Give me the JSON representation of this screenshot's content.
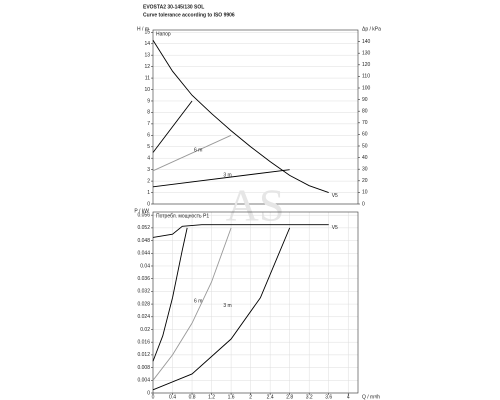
{
  "chart_data": [
    {
      "type": "line",
      "title": "EVOSTA2 30-145/130 SOL",
      "subtitle": "Curve tolerance according to ISO 9906",
      "panel_label": "Напор",
      "ylabel": "H / m",
      "y2label": "Δp / kPa",
      "watermark": "AS",
      "xlim": [
        0,
        4.2
      ],
      "ylim": [
        0,
        15.2
      ],
      "yticks": [
        0,
        1,
        2,
        3,
        4,
        5,
        6,
        7,
        8,
        9,
        10,
        11,
        12,
        13,
        14,
        15
      ],
      "y2lim": [
        0,
        150
      ],
      "y2ticks": [
        0,
        10,
        20,
        30,
        40,
        50,
        60,
        70,
        80,
        90,
        100,
        110,
        120,
        130,
        140
      ],
      "grid": true,
      "series": [
        {
          "name": "V5",
          "color": "#000000",
          "x": [
            0,
            0.4,
            0.8,
            1.2,
            1.6,
            2,
            2.4,
            2.8,
            3.2,
            3.6
          ],
          "values": [
            14.3,
            11.6,
            9.5,
            7.9,
            6.4,
            5,
            3.7,
            2.5,
            1.6,
            1
          ]
        },
        {
          "color": "#000000",
          "x": [
            0,
            0.8
          ],
          "values": [
            4.5,
            9
          ]
        },
        {
          "name": "6 m",
          "color": "#999999",
          "x": [
            0,
            1.6
          ],
          "values": [
            2.9,
            6
          ]
        },
        {
          "name": "3 m",
          "color": "#000000",
          "x": [
            0,
            2.8
          ],
          "values": [
            1.5,
            3
          ]
        }
      ]
    },
    {
      "type": "line",
      "panel_label": "Потребл. мощность P1",
      "ylabel": "P / kW",
      "xlabel": "Q / m³/h",
      "xlim": [
        0,
        4.2
      ],
      "xticks": [
        0,
        0.4,
        0.8,
        1.2,
        1.6,
        2,
        2.4,
        2.8,
        3.2,
        3.6,
        4
      ],
      "ylim": [
        0,
        0.057
      ],
      "yticks": [
        0,
        0.004,
        0.008,
        0.012,
        0.016,
        0.02,
        0.024,
        0.028,
        0.032,
        0.036,
        0.04,
        0.044,
        0.048,
        0.052,
        0.056
      ],
      "grid": true,
      "series": [
        {
          "name": "V5",
          "color": "#000000",
          "x": [
            0,
            0.4,
            0.6,
            1,
            2,
            3,
            3.6
          ],
          "values": [
            0.049,
            0.05,
            0.0525,
            0.053,
            0.053,
            0.053,
            0.053
          ]
        },
        {
          "color": "#000000",
          "x": [
            0,
            0.2,
            0.4,
            0.6,
            0.7
          ],
          "values": [
            0.01,
            0.018,
            0.03,
            0.045,
            0.052
          ]
        },
        {
          "name": "6 m",
          "color": "#999999",
          "x": [
            0,
            0.4,
            0.8,
            1.2,
            1.6
          ],
          "values": [
            0.004,
            0.012,
            0.022,
            0.035,
            0.052
          ]
        },
        {
          "name": "3 m",
          "color": "#000000",
          "x": [
            0,
            0.8,
            1.6,
            2.2,
            2.8
          ],
          "values": [
            0.001,
            0.006,
            0.017,
            0.03,
            0.052
          ]
        }
      ]
    }
  ]
}
